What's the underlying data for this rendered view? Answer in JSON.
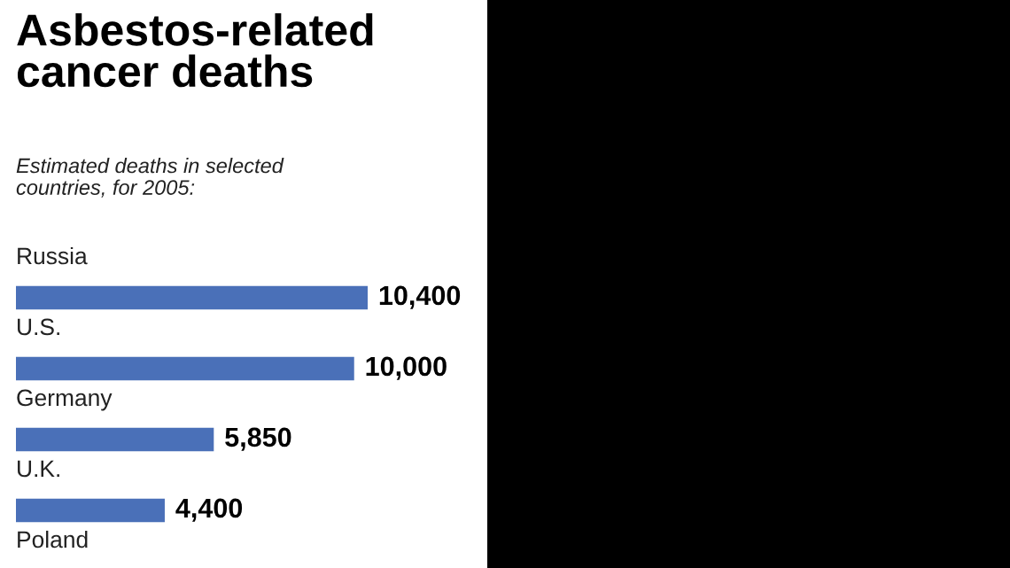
{
  "chart_data": {
    "type": "bar",
    "orientation": "horizontal",
    "title": "Asbestos-related\ncancer deaths",
    "subtitle": "Estimated deaths in selected\ncountries, for 2005:",
    "categories": [
      "Russia",
      "U.S.",
      "Germany",
      "U.K.",
      "Poland"
    ],
    "values": [
      10400,
      10000,
      5850,
      4400,
      null
    ],
    "value_labels": [
      "10,400",
      "10,000",
      "5,850",
      "4,400",
      null
    ],
    "color": "#4a70b8"
  }
}
